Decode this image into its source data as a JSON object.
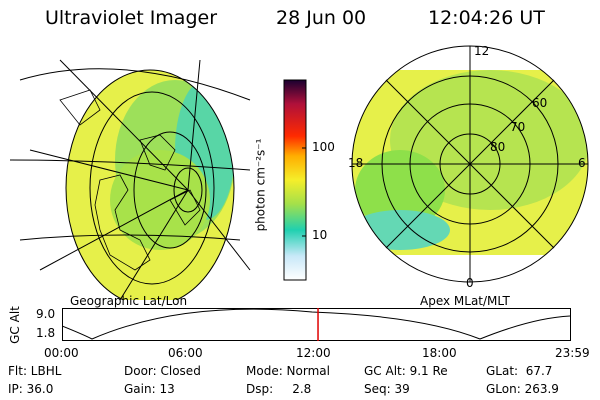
{
  "header": {
    "title": "Ultraviolet Imager",
    "date": "28 Jun 00",
    "time": "12:04:26 UT"
  },
  "left_panel": {
    "caption": "Geographic Lat/Lon"
  },
  "right_panel": {
    "caption": "Apex MLat/MLT",
    "mlt_labels": {
      "top": "12",
      "left": "18",
      "right": "6",
      "bottom": "0"
    },
    "mlat_labels": [
      "60",
      "70",
      "80"
    ]
  },
  "colorbar": {
    "unit_label": "photon cm⁻²s⁻¹",
    "ticks": [
      "100",
      "10"
    ]
  },
  "altitude_track": {
    "ylabel": "GC Alt",
    "yticks": [
      "9.0",
      "1.8"
    ],
    "xticks": [
      "00:00",
      "06:00",
      "12:00",
      "18:00",
      "23:59"
    ],
    "current_time_fraction": 0.503
  },
  "info": {
    "filter": "Flt: LBHL",
    "ip": "IP: 36.0",
    "door": "Door: Closed",
    "gain": "Gain: 13",
    "mode": "Mode: Normal",
    "dsp": "Dsp:     2.8",
    "gc_alt": "GC Alt: 9.1 Re",
    "seq": "Seq: 39",
    "glat": "GLat:  67.7",
    "glon": "GLon: 263.9"
  },
  "colors": {
    "marker": "#e00000",
    "auroral_green": "#8ee04a",
    "auroral_yellow": "#e6f04a"
  }
}
